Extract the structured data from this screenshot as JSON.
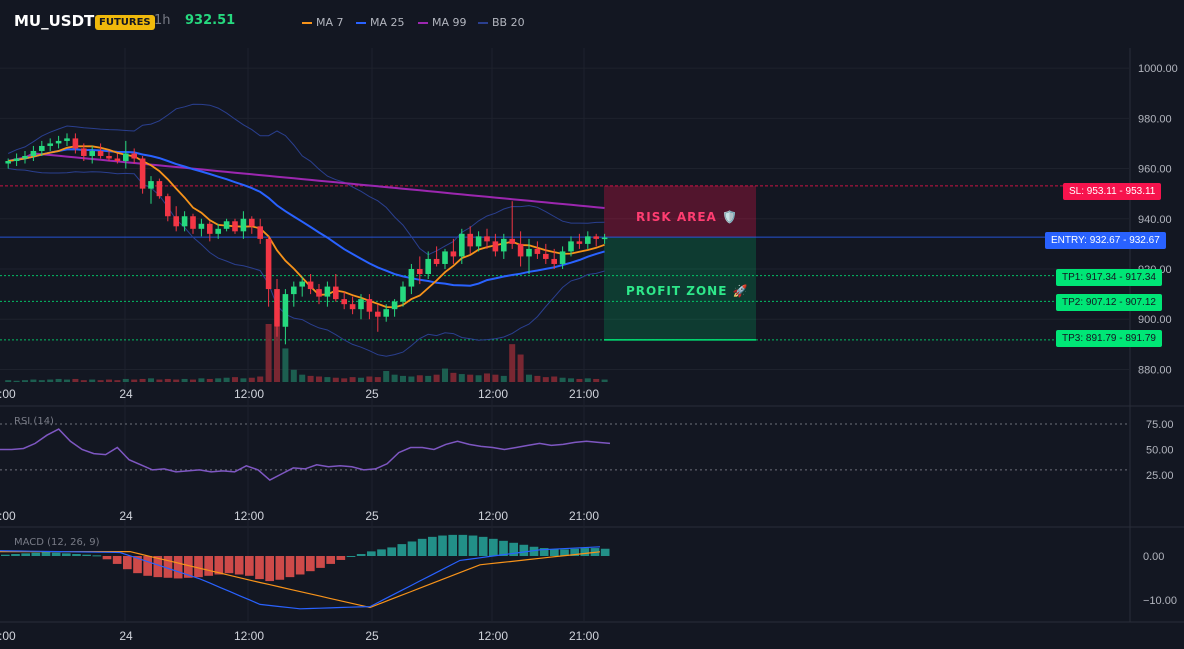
{
  "header": {
    "symbol": "MU_USDT",
    "badge": "FUTURES",
    "timeframe": "1h",
    "last_price": "932.51",
    "indicators": [
      {
        "label": "MA 7",
        "color": "#f7931a"
      },
      {
        "label": "MA 25",
        "color": "#2962ff"
      },
      {
        "label": "MA 99",
        "color": "#9c27b0"
      },
      {
        "label": "BB 20",
        "color": "#2a3f8f"
      }
    ]
  },
  "price_axis": {
    "ticks": [
      "1000.00",
      "980.00",
      "960.00",
      "940.00",
      "920.00",
      "900.00",
      "880.00"
    ]
  },
  "time_axis": {
    "labels": [
      "2:00",
      "24",
      "12:00",
      "25",
      "12:00",
      "21:00"
    ]
  },
  "levels": {
    "sl": "SL: 953.11 - 953.11",
    "entry": "ENTRY: 932.67 - 932.67",
    "tp1": "TP1: 917.34 - 917.34",
    "tp2": "TP2: 907.12 - 907.12",
    "tp3": "TP3: 891.79 - 891.79"
  },
  "zones": {
    "risk": "RISK AREA 🛡️",
    "profit": "PROFIT ZONE 🚀"
  },
  "rsi": {
    "title": "RSI (14)",
    "ticks": [
      "75.00",
      "50.00",
      "25.00"
    ]
  },
  "macd": {
    "title": "MACD (12, 26, 9)",
    "ticks": [
      "0.00",
      "−10.00"
    ]
  },
  "colors": {
    "up": "#26d97f",
    "down": "#f23645",
    "ma7": "#f7931a",
    "ma25": "#2962ff",
    "ma99": "#9c27b0",
    "bb": "#2a3f8f",
    "rsi": "#7e57c2",
    "sl": "#f7134d",
    "entry": "#2962ff",
    "tp": "#00e676"
  },
  "chart_data": {
    "type": "candlestick",
    "symbol": "MU_USDT",
    "interval": "1h",
    "price_ylim": [
      875,
      1008
    ],
    "candles": [
      [
        962,
        964,
        960,
        963
      ],
      [
        963,
        966,
        961,
        964
      ],
      [
        964,
        967,
        962,
        965
      ],
      [
        965,
        969,
        963,
        967
      ],
      [
        967,
        971,
        965,
        969
      ],
      [
        969,
        972,
        967,
        970
      ],
      [
        970,
        973,
        968,
        971
      ],
      [
        971,
        974,
        969,
        972
      ],
      [
        972,
        974,
        966,
        968
      ],
      [
        968,
        970,
        963,
        965
      ],
      [
        965,
        969,
        962,
        967
      ],
      [
        967,
        970,
        964,
        965
      ],
      [
        965,
        967,
        963,
        964
      ],
      [
        964,
        966,
        962,
        963
      ],
      [
        963,
        971,
        960,
        966
      ],
      [
        966,
        968,
        962,
        964
      ],
      [
        964,
        965,
        950,
        952
      ],
      [
        952,
        957,
        946,
        955
      ],
      [
        955,
        956,
        948,
        949
      ],
      [
        949,
        950,
        939,
        941
      ],
      [
        941,
        945,
        935,
        937
      ],
      [
        937,
        943,
        935,
        941
      ],
      [
        941,
        942,
        934,
        936
      ],
      [
        936,
        940,
        933,
        938
      ],
      [
        938,
        939,
        931,
        934
      ],
      [
        934,
        938,
        932,
        936
      ],
      [
        936,
        940,
        935,
        939
      ],
      [
        939,
        940,
        934,
        935
      ],
      [
        935,
        943,
        932,
        940
      ],
      [
        940,
        941,
        934,
        937
      ],
      [
        937,
        940,
        930,
        932
      ],
      [
        932,
        933,
        905,
        912
      ],
      [
        912,
        916,
        893,
        897
      ],
      [
        897,
        912,
        890,
        910
      ],
      [
        910,
        915,
        905,
        913
      ],
      [
        913,
        917,
        909,
        915
      ],
      [
        915,
        918,
        910,
        912
      ],
      [
        912,
        914,
        906,
        909
      ],
      [
        909,
        915,
        905,
        913
      ],
      [
        913,
        918,
        907,
        908
      ],
      [
        908,
        911,
        904,
        906
      ],
      [
        906,
        909,
        902,
        904
      ],
      [
        904,
        910,
        900,
        908
      ],
      [
        908,
        910,
        900,
        903
      ],
      [
        903,
        906,
        895,
        901
      ],
      [
        901,
        906,
        899,
        904
      ],
      [
        904,
        908,
        901,
        907
      ],
      [
        907,
        915,
        905,
        913
      ],
      [
        913,
        922,
        910,
        920
      ],
      [
        920,
        925,
        914,
        918
      ],
      [
        918,
        927,
        916,
        924
      ],
      [
        924,
        929,
        921,
        922
      ],
      [
        922,
        928,
        920,
        927
      ],
      [
        927,
        932,
        922,
        925
      ],
      [
        925,
        936,
        922,
        934
      ],
      [
        934,
        937,
        926,
        929
      ],
      [
        929,
        935,
        927,
        933
      ],
      [
        933,
        936,
        928,
        931
      ],
      [
        931,
        934,
        925,
        927
      ],
      [
        927,
        934,
        924,
        932
      ],
      [
        932,
        947,
        928,
        930
      ],
      [
        930,
        935,
        921,
        925
      ],
      [
        925,
        932,
        918,
        928
      ],
      [
        928,
        931,
        924,
        926
      ],
      [
        926,
        930,
        922,
        924
      ],
      [
        924,
        928,
        920,
        922
      ],
      [
        922,
        929,
        920,
        927
      ],
      [
        927,
        933,
        925,
        931
      ],
      [
        931,
        934,
        928,
        930
      ],
      [
        930,
        935,
        928,
        933
      ],
      [
        933,
        934,
        929,
        932
      ],
      [
        932,
        934,
        930,
        932.5
      ]
    ],
    "volumes": [
      3,
      2,
      3,
      4,
      3,
      4,
      5,
      4,
      5,
      3,
      4,
      3,
      4,
      3,
      5,
      4,
      5,
      6,
      4,
      5,
      4,
      5,
      4,
      6,
      5,
      6,
      7,
      8,
      6,
      7,
      9,
      95,
      90,
      55,
      20,
      12,
      10,
      9,
      8,
      7,
      6,
      8,
      7,
      9,
      8,
      18,
      12,
      10,
      9,
      11,
      10,
      12,
      22,
      15,
      13,
      12,
      11,
      14,
      12,
      10,
      62,
      45,
      12,
      10,
      8,
      9,
      7,
      6,
      5,
      6,
      5,
      4
    ],
    "rsi": [
      50,
      50,
      51,
      56,
      64,
      70,
      58,
      50,
      46,
      45,
      52,
      40,
      35,
      30,
      31,
      28,
      29,
      30,
      28,
      29,
      28,
      34,
      30,
      20,
      26,
      32,
      31,
      35,
      33,
      34,
      33,
      30,
      31,
      36,
      47,
      52,
      52,
      50,
      55,
      58,
      55,
      53,
      52,
      50,
      52,
      54,
      56,
      54,
      55,
      57,
      58,
      57,
      56
    ],
    "macd_hist": [
      0.2,
      0.3,
      0.4,
      0.5,
      0.6,
      0.5,
      0.4,
      0.3,
      0.2,
      0.1,
      -0.5,
      -1.2,
      -2.0,
      -2.6,
      -3.0,
      -3.2,
      -3.3,
      -3.4,
      -3.3,
      -3.2,
      -3.0,
      -2.8,
      -2.6,
      -2.8,
      -3.0,
      -3.5,
      -3.8,
      -3.6,
      -3.2,
      -2.8,
      -2.3,
      -1.8,
      -1.2,
      -0.6,
      0,
      0.3,
      0.7,
      1.0,
      1.3,
      1.8,
      2.2,
      2.6,
      2.9,
      3.1,
      3.2,
      3.2,
      3.1,
      2.9,
      2.6,
      2.3,
      2.0,
      1.7,
      1.4,
      1.2,
      1.0,
      1.0,
      1.1,
      1.2,
      1.2,
      1.1
    ],
    "rsi_ylim": [
      0,
      100
    ],
    "macd_ylim": [
      -15,
      5
    ]
  }
}
